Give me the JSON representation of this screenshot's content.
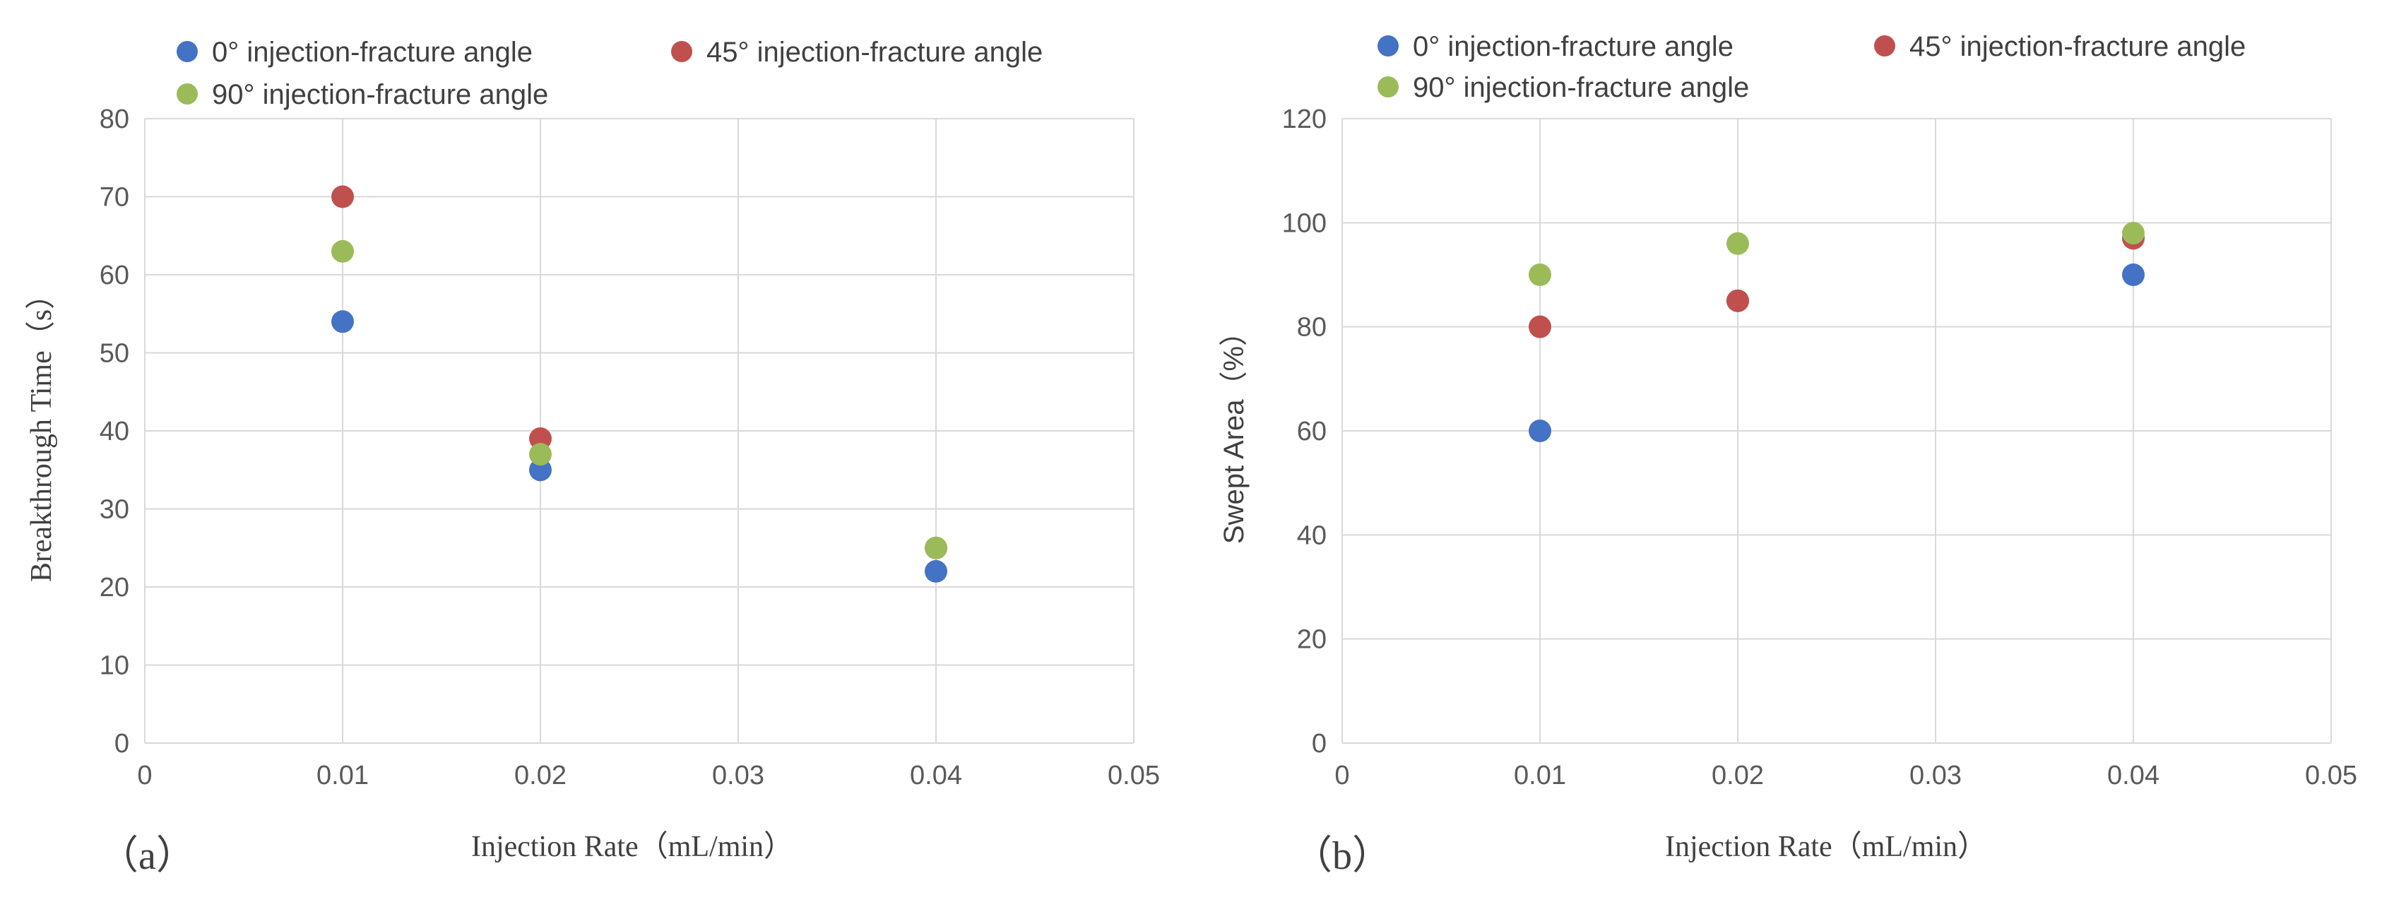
{
  "chart_data": [
    {
      "type": "scatter",
      "panel_label": "（a）",
      "title": "",
      "xlabel": "Injection Rate（mL/min）",
      "ylabel": "Breakthrough Time（s）",
      "xlim": [
        0,
        0.05
      ],
      "ylim": [
        0,
        80
      ],
      "xticks": [
        0,
        0.01,
        0.02,
        0.03,
        0.04,
        0.05
      ],
      "xtick_labels": [
        "0",
        "0.01",
        "0.02",
        "0.03",
        "0.04",
        "0.05"
      ],
      "yticks": [
        0,
        10,
        20,
        30,
        40,
        50,
        60,
        70,
        80
      ],
      "ytick_labels": [
        "0",
        "10",
        "20",
        "30",
        "40",
        "50",
        "60",
        "70",
        "80"
      ],
      "grid": true,
      "legend_position": "top",
      "series": [
        {
          "name": "0°   injection-fracture angle",
          "color": "#4472C4",
          "x": [
            0.01,
            0.02,
            0.04
          ],
          "y": [
            54,
            35,
            22
          ]
        },
        {
          "name": "45°   injection-fracture angle",
          "color": "#C0504D",
          "x": [
            0.01,
            0.02,
            0.04
          ],
          "y": [
            70,
            39,
            25
          ]
        },
        {
          "name": "90°   injection-fracture angle",
          "color": "#9BBB59",
          "x": [
            0.01,
            0.02,
            0.04
          ],
          "y": [
            63,
            37,
            25
          ]
        }
      ]
    },
    {
      "type": "scatter",
      "panel_label": "（b）",
      "title": "",
      "xlabel": "Injection Rate（mL/min）",
      "ylabel": "Swept Area（%）",
      "xlim": [
        0,
        0.05
      ],
      "ylim": [
        0,
        120
      ],
      "xticks": [
        0,
        0.01,
        0.02,
        0.03,
        0.04,
        0.05
      ],
      "xtick_labels": [
        "0",
        "0.01",
        "0.02",
        "0.03",
        "0.04",
        "0.05"
      ],
      "yticks": [
        0,
        20,
        40,
        60,
        80,
        100,
        120
      ],
      "ytick_labels": [
        "0",
        "20",
        "40",
        "60",
        "80",
        "100",
        "120"
      ],
      "grid": true,
      "legend_position": "top",
      "series": [
        {
          "name": "0°   injection-fracture angle",
          "color": "#4472C4",
          "x": [
            0.01,
            0.02,
            0.04
          ],
          "y": [
            60,
            85,
            90
          ]
        },
        {
          "name": "45°   injection-fracture angle",
          "color": "#C0504D",
          "x": [
            0.01,
            0.02,
            0.04
          ],
          "y": [
            80,
            85,
            97
          ]
        },
        {
          "name": "90°   injection-fracture angle",
          "color": "#9BBB59",
          "x": [
            0.01,
            0.02,
            0.04
          ],
          "y": [
            90,
            96,
            98
          ]
        }
      ]
    }
  ]
}
